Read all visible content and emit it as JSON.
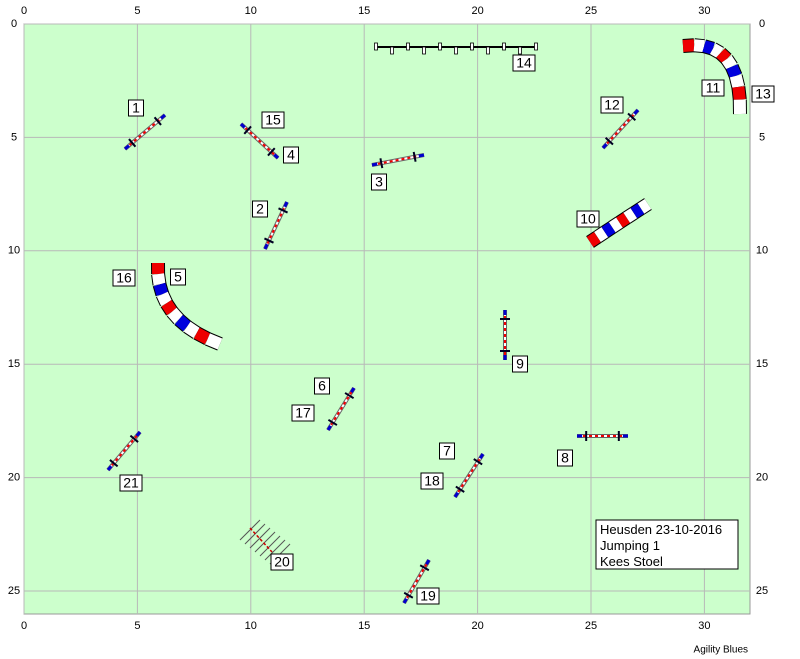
{
  "x_axis": {
    "ticks": [
      0,
      5,
      10,
      15,
      20,
      25,
      30
    ]
  },
  "y_axis": {
    "ticks": [
      0,
      5,
      10,
      15,
      20,
      25
    ]
  },
  "obstacle_labels": [
    "1",
    "15",
    "4",
    "3",
    "2",
    "14",
    "12",
    "11",
    "13",
    "10",
    "16",
    "5",
    "9",
    "6",
    "17",
    "7",
    "18",
    "8",
    "21",
    "20",
    "19"
  ],
  "info_box": {
    "lines": [
      "Heusden 23-10-2016",
      "Jumping 1",
      "Kees Stoel"
    ]
  },
  "footer": "Agility Blues"
}
